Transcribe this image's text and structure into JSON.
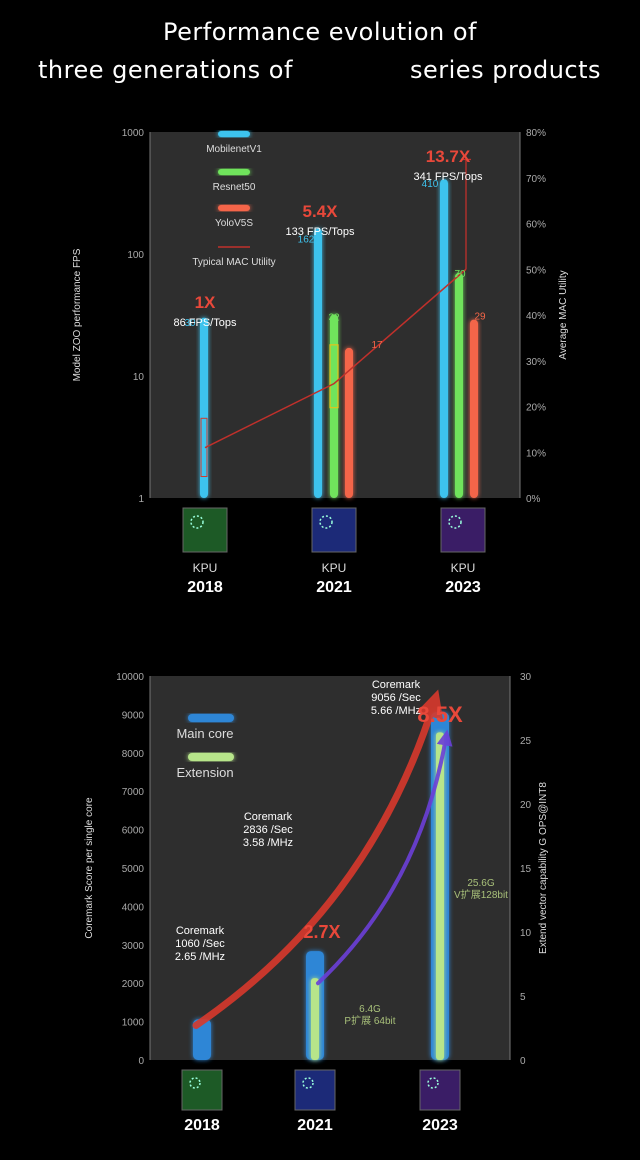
{
  "title": {
    "line1": "Performance evolution of",
    "line2_left": "three generations of",
    "line2_right": "series products"
  },
  "chart_data": [
    {
      "type": "bar",
      "yscale": "log",
      "ylabel": "Model ZOO performance FPS",
      "y2label": "Average MAC Utility",
      "ylim": [
        1,
        1000
      ],
      "y2lim": [
        0,
        80
      ],
      "yticks": [
        "1",
        "10",
        "100",
        "1000"
      ],
      "y2ticks": [
        "0%",
        "10%",
        "20%",
        "30%",
        "40%",
        "50%",
        "60%",
        "70%",
        "80%"
      ],
      "categories": [
        "2018",
        "2021",
        "2023"
      ],
      "chip_labels": [
        "KPU",
        "KPU",
        "KPU"
      ],
      "legend": [
        "MobilenetV1",
        "Resnet50",
        "YoloV5S",
        "Typical MAC Utility"
      ],
      "series": [
        {
          "name": "MobilenetV1",
          "values": [
            30,
            162,
            410
          ],
          "color": "#3ec3ee"
        },
        {
          "name": "Resnet50",
          "values": [
            null,
            32,
            70
          ],
          "color": "#6fe35c"
        },
        {
          "name": "YoloV5S",
          "values": [
            null,
            17,
            29
          ],
          "color": "#f46548"
        },
        {
          "name": "Typical MAC Utility",
          "values": [
            11,
            25,
            50
          ],
          "color": "#c0302b"
        }
      ],
      "value_labels": [
        [
          "30",
          "",
          ""
        ],
        [
          "162",
          "32",
          "17"
        ],
        [
          "410",
          "70",
          "29"
        ]
      ],
      "multipliers": [
        "1X",
        "5.4X",
        "13.7X"
      ],
      "fps_per_tops": [
        "86 FPS/Tops",
        "133 FPS/Tops",
        "341 FPS/Tops"
      ]
    },
    {
      "type": "bar",
      "ylabel": "Coremark Score per single core",
      "y2label": "Extend vector capability G OPS@INT8",
      "ylim": [
        0,
        10000
      ],
      "y2lim": [
        0,
        30
      ],
      "yticks": [
        "0",
        "1000",
        "2000",
        "3000",
        "4000",
        "5000",
        "6000",
        "7000",
        "8000",
        "9000",
        "10000"
      ],
      "y2ticks": [
        "0",
        "5",
        "10",
        "15",
        "20",
        "25",
        "30"
      ],
      "categories": [
        "2018",
        "2021",
        "2023"
      ],
      "legend": [
        "Main core",
        "Extension"
      ],
      "series": [
        {
          "name": "Main core",
          "values": [
            1060,
            2836,
            9056
          ],
          "color": "#2f86d6"
        },
        {
          "name": "Extension",
          "values": [
            null,
            6.4,
            25.6
          ],
          "color": "#b7e58a"
        }
      ],
      "coremark_labels": [
        [
          "Coremark",
          "1060 /Sec",
          "2.65 /MHz"
        ],
        [
          "Coremark",
          "2836 /Sec",
          "3.58 /MHz"
        ],
        [
          "Coremark",
          "9056 /Sec",
          "5.66 /MHz"
        ]
      ],
      "multipliers": [
        "",
        "2.7X",
        "8.5X"
      ],
      "extension_labels": [
        [
          "",
          ""
        ],
        [
          "6.4G",
          "P扩展 64bit"
        ],
        [
          "25.6G",
          "V扩展128bit"
        ]
      ]
    }
  ]
}
